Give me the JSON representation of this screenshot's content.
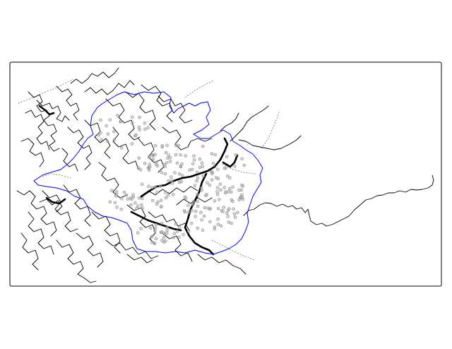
{
  "map": {
    "colors": {
      "background": "#ffffff",
      "frame": "#000000",
      "rivers": "#000000",
      "boundary": "#0000ff",
      "trails": "#4a8a4a",
      "points": "#bdbdbd"
    },
    "layers": [
      "frame",
      "rivers",
      "boundary",
      "trails",
      "points"
    ]
  }
}
